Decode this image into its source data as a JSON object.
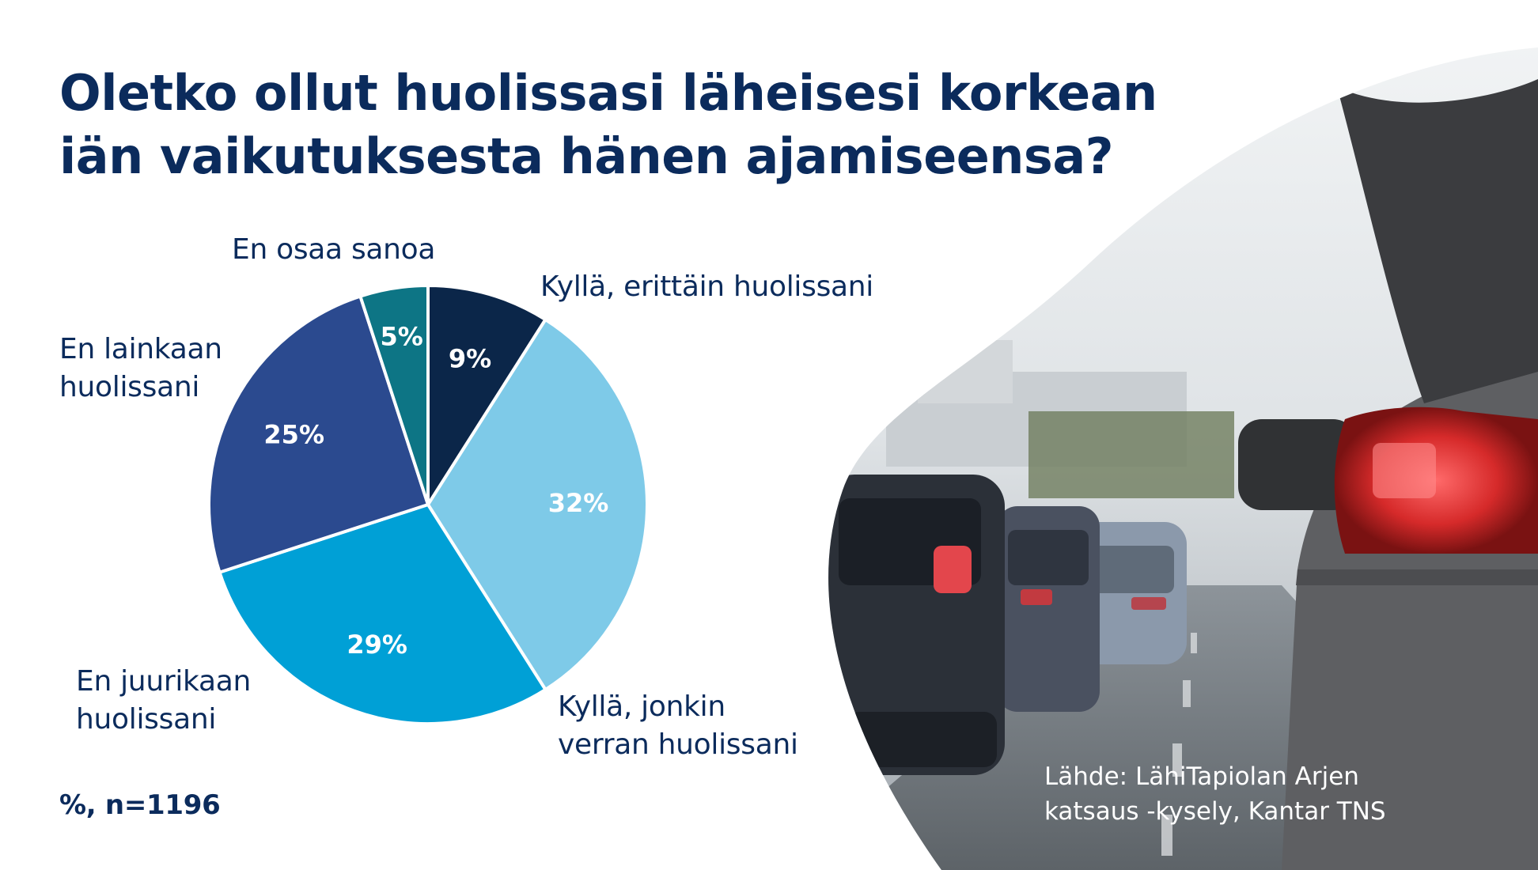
{
  "title_lines": [
    "Oletko ollut huolissasi läheisesi korkean",
    "iän vaikutuksesta hänen ajamiseensa?"
  ],
  "note": "%, n=1196",
  "source_lines": [
    "Lähde: LähiTapiolan Arjen",
    "katsaus -kysely, Kantar TNS"
  ],
  "chart_data": {
    "type": "pie",
    "title": "Oletko ollut huolissasi läheisesi korkean iän vaikutuksesta hänen ajamiseensa?",
    "slices": [
      {
        "label": "Kyllä, erittäin huolissani",
        "value": 9,
        "value_label": "9%",
        "color": "#0b2649"
      },
      {
        "label": "Kyllä, jonkin verran huolissani",
        "value": 32,
        "value_label": "32%",
        "color": "#7ecae8"
      },
      {
        "label": "En juurikaan huolissani",
        "value": 29,
        "value_label": "29%",
        "color": "#00a0d6"
      },
      {
        "label": "En lainkaan huolissani",
        "value": 25,
        "value_label": "25%",
        "color": "#2b4a8f"
      },
      {
        "label": "En osaa sanoa",
        "value": 5,
        "value_label": "5%",
        "color": "#0d7585"
      }
    ],
    "legend": "none",
    "start_angle": "12 o'clock, clockwise"
  },
  "category_label_lines": [
    [
      "Kyllä, erittäin huolissani"
    ],
    [
      "Kyllä, jonkin",
      "verran huolissani"
    ],
    [
      "En juurikaan",
      "huolissani"
    ],
    [
      "En lainkaan",
      "huolissani"
    ],
    [
      "En osaa sanoa"
    ]
  ],
  "colors": {
    "title": "#0b2b5c",
    "background": "#ffffff",
    "source_text": "#ffffff"
  }
}
